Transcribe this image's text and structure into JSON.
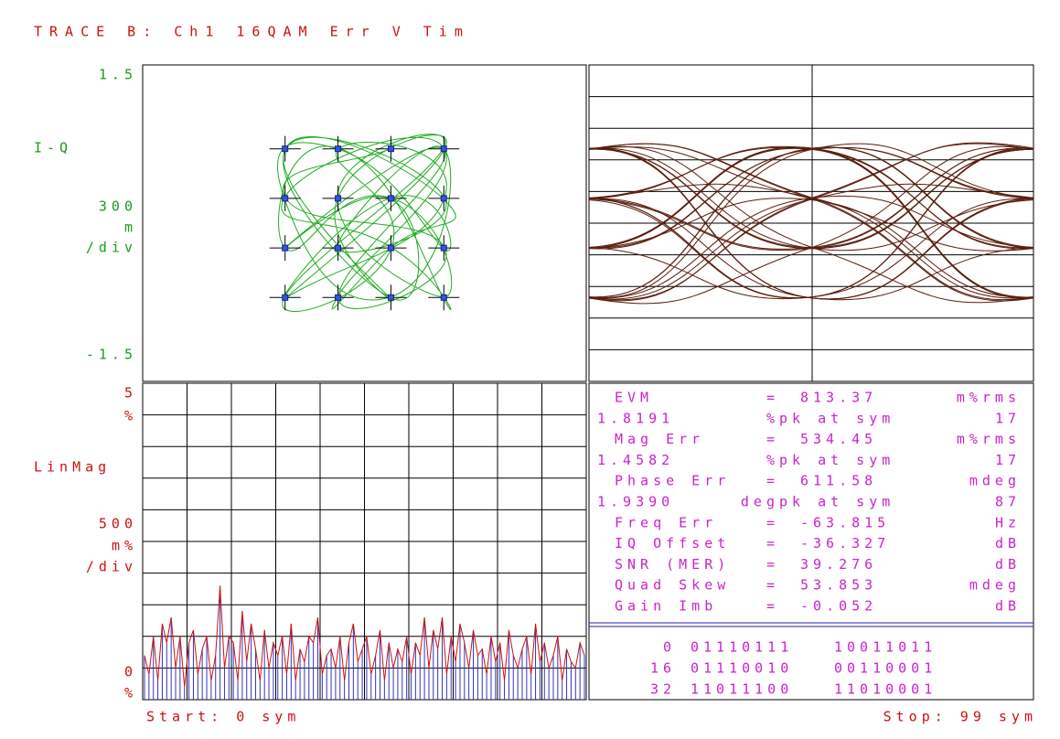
{
  "title": "TRACE B: Ch1 16QAM Err V Tim",
  "constellation": {
    "type": "scatter",
    "name": "I-Q",
    "scale": "300",
    "scale_unit": "m",
    "per": "/div",
    "ylim": [
      -1.5,
      1.5
    ],
    "xlim": [
      -1.97,
      1.97
    ],
    "ref_levels": [
      -0.705,
      -0.235,
      0.235,
      0.705
    ],
    "trajectory": {
      "i": [
        0.24,
        -0.7,
        0.71,
        -0.23,
        0.7,
        -0.71,
        0.23,
        0.24,
        -0.7,
        0.71,
        -0.24,
        0.7,
        0.23,
        -0.71,
        -0.23,
        0.7,
        0.24,
        -0.7,
        0.71,
        -0.24,
        0.22,
        -0.7,
        0.7,
        0.23,
        -0.24,
        0.71,
        -0.71,
        0.24,
        0.7,
        -0.23,
        -0.7,
        0.23,
        0.71,
        -0.24,
        0.7,
        -0.71,
        0.24,
        -0.23,
        0.71,
        -0.7
      ],
      "q": [
        0.71,
        0.24,
        -0.23,
        -0.7,
        0.7,
        -0.24,
        0.23,
        -0.71,
        0.7,
        0.24,
        -0.23,
        0.71,
        -0.7,
        0.23,
        0.7,
        -0.24,
        0.24,
        -0.71,
        0.7,
        0.23,
        -0.7,
        0.71,
        0.23,
        -0.24,
        -0.7,
        0.7,
        0.24,
        -0.23,
        -0.71,
        0.71,
        -0.24,
        0.24,
        -0.7,
        0.23,
        0.71,
        -0.7,
        -0.23,
        0.7,
        0.24,
        -0.71
      ]
    }
  },
  "error": {
    "type": "bar",
    "name": "LinMag",
    "ylim": [
      0,
      5
    ],
    "top_unit": "%",
    "bottom_unit": "%",
    "scale": "500",
    "scale_unit": "m%",
    "per": "/div",
    "start": "Start: 0 sym",
    "stop": "Stop: 99 sym",
    "values": [
      0.7,
      0.4,
      1.0,
      0.3,
      1.2,
      0.9,
      1.3,
      0.5,
      1.0,
      0.2,
      0.9,
      1.1,
      0.4,
      0.8,
      1.0,
      0.3,
      0.7,
      1.8,
      0.5,
      1.0,
      0.9,
      0.3,
      1.4,
      0.6,
      1.2,
      0.8,
      0.3,
      1.1,
      0.5,
      0.9,
      0.7,
      1.0,
      0.4,
      1.2,
      0.3,
      0.8,
      0.6,
      1.0,
      0.9,
      1.3,
      0.4,
      0.7,
      0.8,
      0.5,
      1.0,
      0.3,
      0.9,
      1.2,
      0.6,
      0.8,
      1.0,
      0.4,
      0.7,
      1.1,
      0.3,
      0.9,
      0.5,
      0.8,
      0.6,
      1.0,
      0.4,
      0.9,
      0.7,
      1.3,
      0.5,
      1.1,
      0.8,
      1.3,
      0.4,
      1.0,
      0.6,
      1.2,
      0.9,
      0.5,
      1.1,
      0.7,
      0.8,
      0.4,
      1.0,
      0.6,
      0.9,
      0.3,
      1.1,
      0.7,
      0.5,
      0.8,
      1.0,
      0.4,
      1.2,
      0.6,
      0.9,
      0.5,
      0.7,
      1.0,
      0.3,
      0.8,
      0.6,
      0.5,
      0.9,
      0.7
    ]
  },
  "table": {
    "rows": [
      [
        "EVM",
        "=",
        "813.37",
        "m%rms"
      ],
      [
        "1.8191",
        "%",
        "pk at sym",
        "17"
      ],
      [
        "Mag Err",
        "=",
        "534.45",
        "m%rms"
      ],
      [
        "1.4582",
        "%",
        "pk at sym",
        "17"
      ],
      [
        "Phase Err",
        "=",
        "611.58",
        "mdeg"
      ],
      [
        "1.9390",
        "deg",
        "pk at sym",
        "87"
      ],
      [
        "Freq Err",
        "=",
        "-63.815",
        "Hz"
      ],
      [
        "IQ Offset",
        "=",
        "-36.327",
        "dB"
      ],
      [
        "SNR (MER)",
        "=",
        "39.276",
        "dB"
      ],
      [
        "Quad Skew",
        "=",
        "53.853",
        "mdeg"
      ],
      [
        "Gain Imb",
        "=",
        "-0.052",
        "dB"
      ]
    ],
    "bits": [
      [
        "0",
        "01110111",
        "10011011"
      ],
      [
        "16",
        "01110010",
        "00110001"
      ],
      [
        "32",
        "11011100",
        "11010001"
      ]
    ]
  }
}
